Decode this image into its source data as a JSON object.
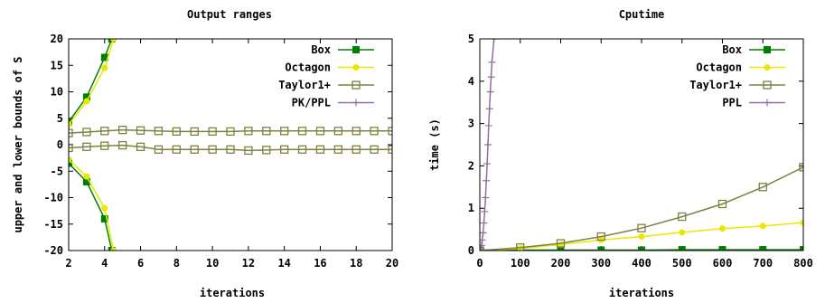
{
  "chart_data": [
    {
      "type": "line",
      "title": "Output ranges",
      "xlabel": "iterations",
      "ylabel": "upper and lower bounds of S",
      "xlim": [
        2,
        20
      ],
      "ylim": [
        -20,
        20
      ],
      "xticks": [
        "2",
        "4",
        "6",
        "8",
        "10",
        "12",
        "14",
        "16",
        "18",
        "20"
      ],
      "yticks": [
        "-20",
        "-15",
        "-10",
        "-5",
        "0",
        "5",
        "10",
        "15",
        "20"
      ],
      "legend_position": "top-right",
      "series": [
        {
          "name": "Box",
          "color": "#008000",
          "marker": "filled-square",
          "upper": {
            "x": [
              2,
              3,
              4,
              4.4
            ],
            "y": [
              4.3,
              9,
              16.5,
              20
            ]
          },
          "lower": {
            "x": [
              2,
              3,
              4,
              4.4
            ],
            "y": [
              -3.5,
              -7,
              -14,
              -20
            ]
          }
        },
        {
          "name": "Octagon",
          "color": "#e8e800",
          "marker": "filled-circle",
          "upper": {
            "x": [
              2,
              3,
              4,
              4.5
            ],
            "y": [
              3.8,
              8.2,
              14.5,
              20
            ]
          },
          "lower": {
            "x": [
              2,
              3,
              4,
              4.5
            ],
            "y": [
              -2.8,
              -6,
              -12,
              -20
            ]
          }
        },
        {
          "name": "Taylor1+",
          "color": "#808040",
          "marker": "open-square",
          "upper": {
            "x": [
              2,
              3,
              4,
              5,
              6,
              7,
              8,
              9,
              10,
              11,
              12,
              13,
              14,
              15,
              16,
              17,
              18,
              19,
              20
            ],
            "y": [
              2.2,
              2.4,
              2.6,
              2.8,
              2.7,
              2.6,
              2.5,
              2.5,
              2.5,
              2.5,
              2.6,
              2.6,
              2.6,
              2.6,
              2.6,
              2.6,
              2.6,
              2.6,
              2.6
            ]
          },
          "lower": {
            "x": [
              2,
              3,
              4,
              5,
              6,
              7,
              8,
              9,
              10,
              11,
              12,
              13,
              14,
              15,
              16,
              17,
              18,
              19,
              20
            ],
            "y": [
              -0.6,
              -0.4,
              -0.2,
              -0.1,
              -0.4,
              -0.9,
              -0.9,
              -0.9,
              -0.9,
              -0.9,
              -1.1,
              -1.0,
              -0.9,
              -0.9,
              -0.9,
              -0.9,
              -0.9,
              -0.9,
              -0.9
            ]
          }
        },
        {
          "name": "PK/PPL",
          "color": "#9070a0",
          "marker": "plus",
          "upper": {
            "x": [],
            "y": []
          },
          "lower": {
            "x": [],
            "y": []
          }
        }
      ]
    },
    {
      "type": "line",
      "title": "Cputime",
      "xlabel": "iterations",
      "ylabel": "time (s)",
      "xlim": [
        0,
        800
      ],
      "ylim": [
        0,
        5
      ],
      "xticks": [
        "0",
        "100",
        "200",
        "300",
        "400",
        "500",
        "600",
        "700",
        "800"
      ],
      "yticks": [
        "0",
        "1",
        "2",
        "3",
        "4",
        "5"
      ],
      "legend_position": "top-right",
      "series": [
        {
          "name": "Box",
          "color": "#008000",
          "marker": "filled-square",
          "x": [
            0,
            100,
            200,
            300,
            400,
            500,
            600,
            700,
            800
          ],
          "y": [
            0.01,
            0.01,
            0.01,
            0.01,
            0.01,
            0.02,
            0.02,
            0.02,
            0.02
          ]
        },
        {
          "name": "Octagon",
          "color": "#e8e800",
          "marker": "filled-circle",
          "x": [
            0,
            100,
            200,
            300,
            400,
            500,
            600,
            700,
            800
          ],
          "y": [
            0,
            0.05,
            0.14,
            0.25,
            0.33,
            0.43,
            0.52,
            0.58,
            0.66
          ]
        },
        {
          "name": "Taylor1+",
          "color": "#808040",
          "marker": "open-square",
          "x": [
            0,
            100,
            200,
            300,
            400,
            500,
            600,
            700,
            800
          ],
          "y": [
            0,
            0.07,
            0.17,
            0.33,
            0.53,
            0.8,
            1.1,
            1.5,
            1.97
          ]
        },
        {
          "name": "PPL",
          "color": "#9070a0",
          "marker": "plus",
          "x": [
            0,
            2,
            4,
            6,
            8,
            10,
            12,
            14,
            16,
            18,
            20,
            22,
            24,
            26,
            28,
            30,
            35
          ],
          "y": [
            0,
            0.05,
            0.12,
            0.25,
            0.42,
            0.65,
            0.92,
            1.25,
            1.65,
            2.05,
            2.5,
            2.95,
            3.35,
            3.75,
            4.1,
            4.45,
            5.0
          ]
        }
      ]
    }
  ]
}
